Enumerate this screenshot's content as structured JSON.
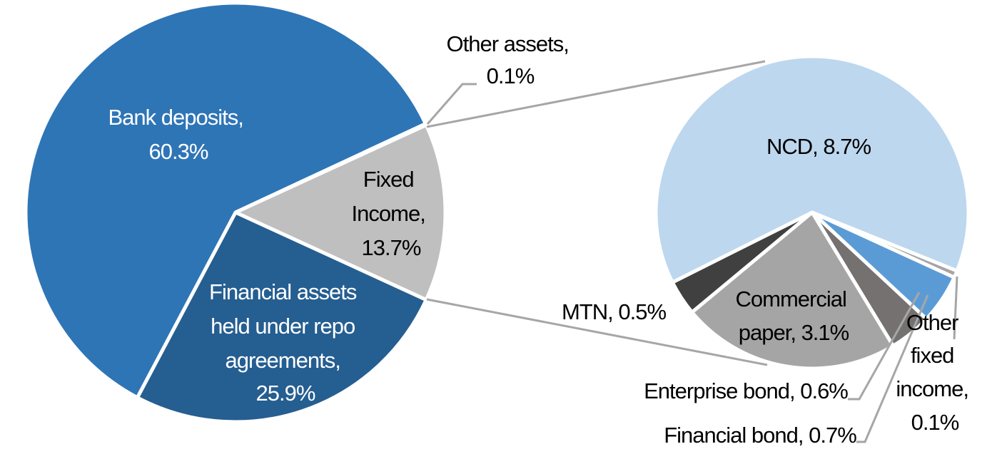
{
  "chart_data": [
    {
      "type": "pie",
      "title": "",
      "slices": [
        {
          "label": "Fixed Income",
          "value": 13.7,
          "color": "#bfbfbf"
        },
        {
          "label": "Financial assets held under repo agreements",
          "value": 25.9,
          "color": "#255e91"
        },
        {
          "label": "Bank deposits",
          "value": 60.3,
          "color": "#2e75b6"
        },
        {
          "label": "Other assets",
          "value": 0.1,
          "color": "#bfbfbf"
        }
      ],
      "labels": {
        "bank": [
          "Bank deposits,",
          "60.3%"
        ],
        "fixed": [
          "Fixed",
          "Income,",
          "13.7%"
        ],
        "repo": [
          "Financial assets",
          "held under repo",
          "agreements,",
          "25.9%"
        ],
        "other": [
          "Other assets,",
          "0.1%"
        ]
      }
    },
    {
      "type": "pie",
      "title": "",
      "breakdown_of": "Fixed Income",
      "slices": [
        {
          "label": "Other fixed income",
          "value": 0.1,
          "color": "#a5a5a5"
        },
        {
          "label": "Financial bond",
          "value": 0.7,
          "color": "#5b9bd5"
        },
        {
          "label": "Enterprise bond",
          "value": 0.6,
          "color": "#767171"
        },
        {
          "label": "Commercial paper",
          "value": 3.1,
          "color": "#a5a5a5"
        },
        {
          "label": "MTN",
          "value": 0.5,
          "color": "#404040"
        },
        {
          "label": "NCD",
          "value": 8.7,
          "color": "#bdd7ee"
        }
      ],
      "labels": {
        "ncd": "NCD, 8.7%",
        "mtn": "MTN, 0.5%",
        "cp": [
          "Commercial",
          "paper, 3.1%"
        ],
        "other": [
          "Other",
          "fixed",
          "income,",
          "0.1%"
        ],
        "eb": "Enterprise bond, 0.6%",
        "fb": "Financial bond, 0.7%"
      }
    }
  ]
}
